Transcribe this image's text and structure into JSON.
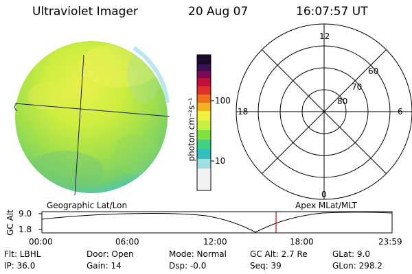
{
  "header": {
    "instrument": "Ultraviolet Imager",
    "date": "20 Aug 07",
    "time": "16:07:57 UT"
  },
  "colorbar": {
    "unit_label": "photon cm⁻²s⁻¹",
    "ticks": [
      "100",
      "10"
    ],
    "colors": [
      "#1a0a2e",
      "#3a1050",
      "#7a0a55",
      "#c0103a",
      "#e03030",
      "#f07020",
      "#f4b020",
      "#f0f040",
      "#c8f040",
      "#80e040",
      "#40d080",
      "#30c0c0",
      "#a0e0e0",
      "#f2f2f2"
    ],
    "scale": "log"
  },
  "polar_plot": {
    "mlt_labels": {
      "top": "12",
      "left": "18",
      "right": "6",
      "bottom": "0"
    },
    "lat_labels": [
      "60",
      "70",
      "80"
    ]
  },
  "timeline": {
    "left_label": "Geographic Lat/Lon",
    "right_label": "Apex MLat/MLT",
    "yaxis_label": "GC Alt",
    "y_ticks": [
      "9.0",
      "1.8"
    ],
    "x_ticks": [
      "00:00",
      "06:00",
      "12:00",
      "18:00",
      "23:59"
    ],
    "marker_color": "#cc0000"
  },
  "info": {
    "flt": "Flt: LBHL",
    "door": "Door: Open",
    "mode": "Mode: Normal",
    "gc_alt": "GC Alt: 2.7 Re",
    "glat": "GLat:   9.0",
    "ip": "IP: 36.0",
    "gain": "Gain: 14",
    "dsp": "Dsp:   -0.0",
    "seq": "Seq: 39",
    "glon": "GLon: 298.2"
  }
}
